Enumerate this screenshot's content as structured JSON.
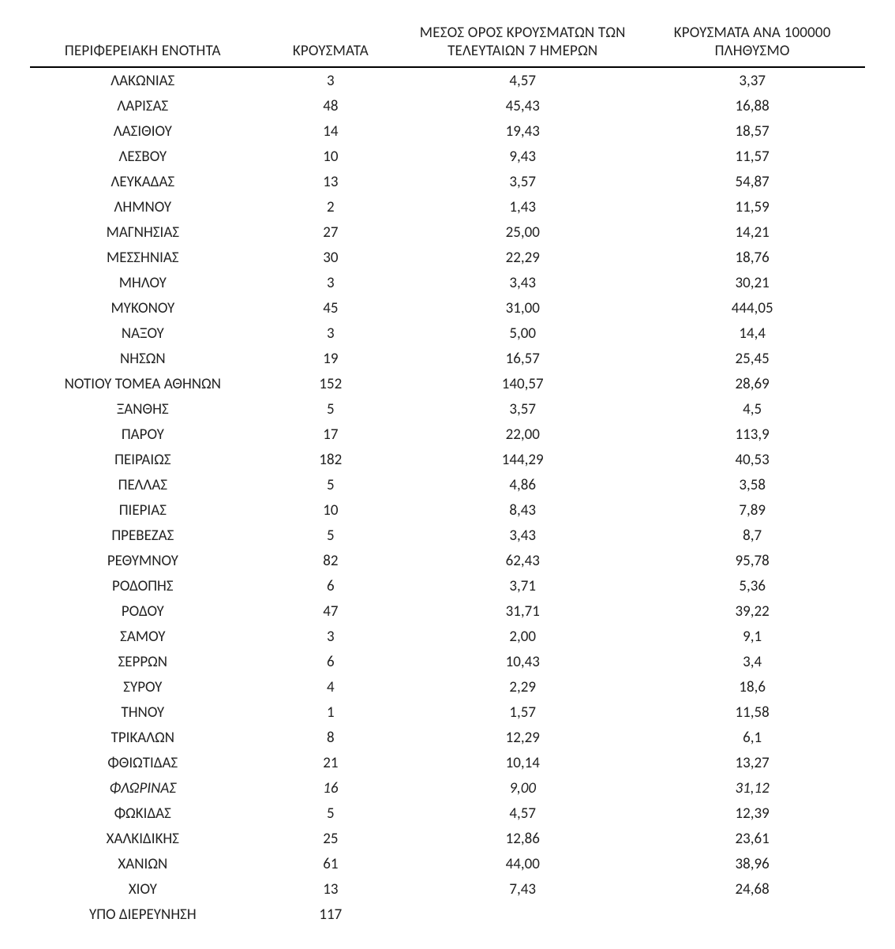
{
  "table": {
    "headers": {
      "region": "ΠΕΡΙΦΕΡΕΙΑΚΗ ΕΝΟΤΗΤΑ",
      "cases": "ΚΡΟΥΣΜΑΤΑ",
      "avg7": "ΜΕΣΟΣ ΟΡΟΣ ΚΡΟΥΣΜΑΤΩΝ ΤΩΝ ΤΕΛΕΥΤΑΙΩΝ 7 ΗΜΕΡΩΝ",
      "per100k": "ΚΡΟΥΣΜΑΤΑ ΑΝΑ 100000 ΠΛΗΘΥΣΜΟ"
    },
    "column_widths_pct": [
      27,
      18,
      28,
      27
    ],
    "font_size_pt": 19,
    "header_border_color": "#000000",
    "text_color": "#222222",
    "background_color": "#ffffff",
    "rows": [
      {
        "region": "ΛΑΚΩΝΙΑΣ",
        "cases": "3",
        "avg7": "4,57",
        "per100k": "3,37"
      },
      {
        "region": "ΛΑΡΙΣΑΣ",
        "cases": "48",
        "avg7": "45,43",
        "per100k": "16,88"
      },
      {
        "region": "ΛΑΣΙΘΙΟΥ",
        "cases": "14",
        "avg7": "19,43",
        "per100k": "18,57"
      },
      {
        "region": "ΛΕΣΒΟΥ",
        "cases": "10",
        "avg7": "9,43",
        "per100k": "11,57"
      },
      {
        "region": "ΛΕΥΚΑΔΑΣ",
        "cases": "13",
        "avg7": "3,57",
        "per100k": "54,87"
      },
      {
        "region": "ΛΗΜΝΟΥ",
        "cases": "2",
        "avg7": "1,43",
        "per100k": "11,59"
      },
      {
        "region": "ΜΑΓΝΗΣΙΑΣ",
        "cases": "27",
        "avg7": "25,00",
        "per100k": "14,21"
      },
      {
        "region": "ΜΕΣΣΗΝΙΑΣ",
        "cases": "30",
        "avg7": "22,29",
        "per100k": "18,76"
      },
      {
        "region": "ΜΗΛΟΥ",
        "cases": "3",
        "avg7": "3,43",
        "per100k": "30,21"
      },
      {
        "region": "ΜΥΚΟΝΟΥ",
        "cases": "45",
        "avg7": "31,00",
        "per100k": "444,05"
      },
      {
        "region": "ΝΑΞΟΥ",
        "cases": "3",
        "avg7": "5,00",
        "per100k": "14,4"
      },
      {
        "region": "ΝΗΣΩΝ",
        "cases": "19",
        "avg7": "16,57",
        "per100k": "25,45"
      },
      {
        "region": "ΝΟΤΙΟΥ ΤΟΜΕΑ ΑΘΗΝΩΝ",
        "cases": "152",
        "avg7": "140,57",
        "per100k": "28,69"
      },
      {
        "region": "ΞΑΝΘΗΣ",
        "cases": "5",
        "avg7": "3,57",
        "per100k": "4,5"
      },
      {
        "region": "ΠΑΡΟΥ",
        "cases": "17",
        "avg7": "22,00",
        "per100k": "113,9"
      },
      {
        "region": "ΠΕΙΡΑΙΩΣ",
        "cases": "182",
        "avg7": "144,29",
        "per100k": "40,53"
      },
      {
        "region": "ΠΕΛΛΑΣ",
        "cases": "5",
        "avg7": "4,86",
        "per100k": "3,58"
      },
      {
        "region": "ΠΙΕΡΙΑΣ",
        "cases": "10",
        "avg7": "8,43",
        "per100k": "7,89"
      },
      {
        "region": "ΠΡΕΒΕΖΑΣ",
        "cases": "5",
        "avg7": "3,43",
        "per100k": "8,7"
      },
      {
        "region": "ΡΕΘΥΜΝΟΥ",
        "cases": "82",
        "avg7": "62,43",
        "per100k": "95,78"
      },
      {
        "region": "ΡΟΔΟΠΗΣ",
        "cases": "6",
        "avg7": "3,71",
        "per100k": "5,36"
      },
      {
        "region": "ΡΟΔΟΥ",
        "cases": "47",
        "avg7": "31,71",
        "per100k": "39,22"
      },
      {
        "region": "ΣΑΜΟΥ",
        "cases": "3",
        "avg7": "2,00",
        "per100k": "9,1"
      },
      {
        "region": "ΣΕΡΡΩΝ",
        "cases": "6",
        "avg7": "10,43",
        "per100k": "3,4"
      },
      {
        "region": "ΣΥΡΟΥ",
        "cases": "4",
        "avg7": "2,29",
        "per100k": "18,6"
      },
      {
        "region": "ΤΗΝΟΥ",
        "cases": "1",
        "avg7": "1,57",
        "per100k": "11,58"
      },
      {
        "region": "ΤΡΙΚΑΛΩΝ",
        "cases": "8",
        "avg7": "12,29",
        "per100k": "6,1"
      },
      {
        "region": "ΦΘΙΩΤΙΔΑΣ",
        "cases": "21",
        "avg7": "10,14",
        "per100k": "13,27"
      },
      {
        "region": "ΦΛΩΡΙΝΑΣ",
        "cases": "16",
        "avg7": "9,00",
        "per100k": "31,12",
        "italic": true
      },
      {
        "region": "ΦΩΚΙΔΑΣ",
        "cases": "5",
        "avg7": "4,57",
        "per100k": "12,39"
      },
      {
        "region": "ΧΑΛΚΙΔΙΚΗΣ",
        "cases": "25",
        "avg7": "12,86",
        "per100k": "23,61"
      },
      {
        "region": "ΧΑΝΙΩΝ",
        "cases": "61",
        "avg7": "44,00",
        "per100k": "38,96"
      },
      {
        "region": "ΧΙΟΥ",
        "cases": "13",
        "avg7": "7,43",
        "per100k": "24,68"
      },
      {
        "region": "ΥΠΟ ΔΙΕΡΕΥΝΗΣΗ",
        "cases": "117",
        "avg7": "",
        "per100k": ""
      }
    ]
  }
}
